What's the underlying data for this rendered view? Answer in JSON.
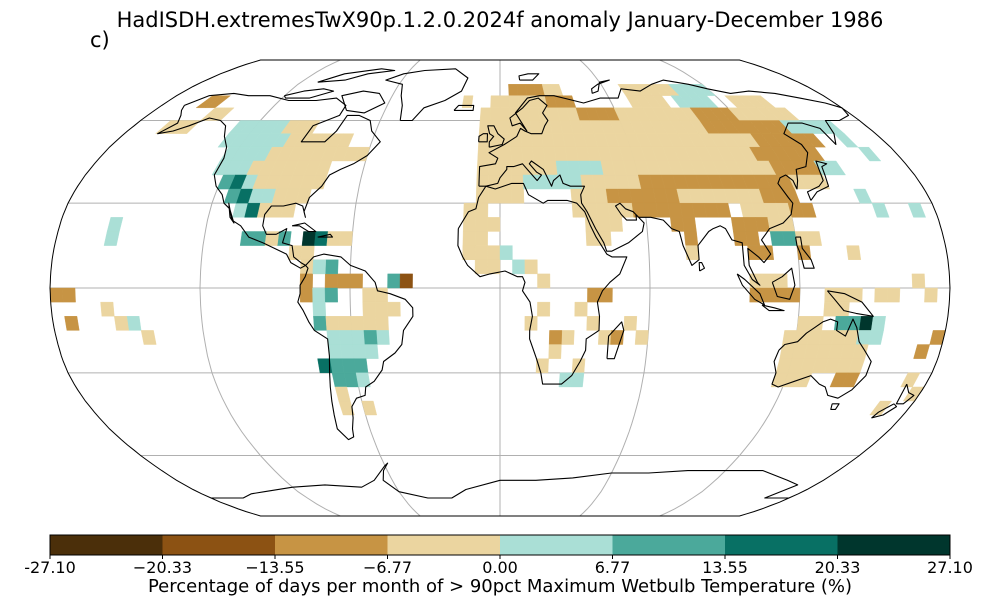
{
  "title": "HadISDH.extremesTwX90p.1.2.0.2024f anomaly January-December 1986",
  "panel_label": "c)",
  "colorbar": {
    "label": "Percentage of days per month of > 90pct Maximum Wetbulb Temperature (%)",
    "ticks": [
      "-27.10",
      "−20.33",
      "−13.55",
      "−6.77",
      "0.00",
      "6.77",
      "13.55",
      "20.33",
      "27.10"
    ],
    "bins": [
      {
        "from": -27.1,
        "to": -20.33,
        "color": "#4b2f0a"
      },
      {
        "from": -20.33,
        "to": -13.55,
        "color": "#8c5213"
      },
      {
        "from": -13.55,
        "to": -6.77,
        "color": "#c79444"
      },
      {
        "from": -6.77,
        "to": 0.0,
        "color": "#ebd5a0"
      },
      {
        "from": 0.0,
        "to": 6.77,
        "color": "#aadfd6"
      },
      {
        "from": 6.77,
        "to": 13.55,
        "color": "#4ba99b"
      },
      {
        "from": 13.55,
        "to": 20.33,
        "color": "#087064"
      },
      {
        "from": 20.33,
        "to": 27.1,
        "color": "#00362d"
      }
    ]
  },
  "map": {
    "projection": "robinson",
    "gridlines": true,
    "coastlines": true
  }
}
